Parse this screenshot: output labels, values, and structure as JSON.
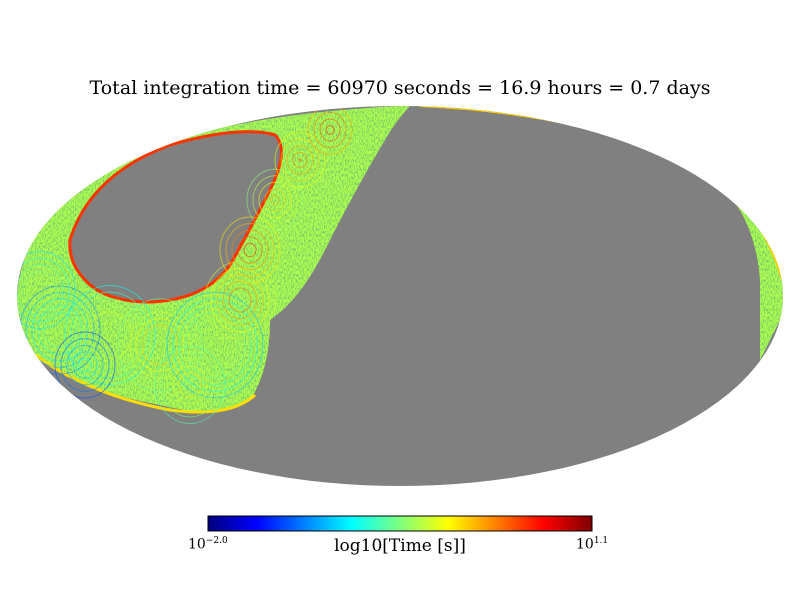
{
  "chart_data": {
    "type": "heatmap",
    "projection": "mollweide",
    "title": "Total integration time = 60970 seconds = 16.9 hours = 0.7 days",
    "colorbar": {
      "label": "log10[Time [s]]",
      "min": {
        "base": "10",
        "exponent": "−2.0",
        "value": -2.0
      },
      "max": {
        "base": "10",
        "exponent": "1.1",
        "value": 1.1
      },
      "colormap": "jet",
      "colormap_colors": [
        "#00007f",
        "#0000ff",
        "#007fff",
        "#00ffff",
        "#7fff7f",
        "#ffff00",
        "#ff7f00",
        "#ff0000",
        "#7f0000"
      ]
    },
    "unobserved_color": "#808080",
    "dominant_observed_value": -0.3,
    "edge_observed_value": 0.9,
    "coverage": "scan-strategy pattern: arc from lower-left to top-center, loop around a northern unobserved region, and a thin band along the right and top limb"
  }
}
